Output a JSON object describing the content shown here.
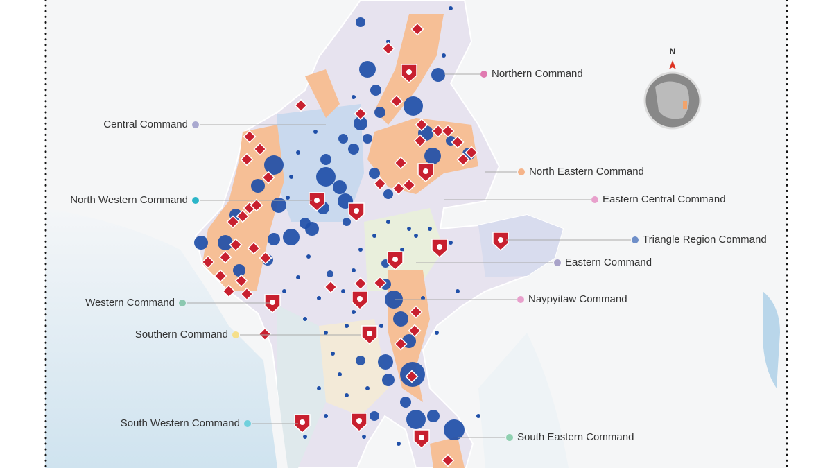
{
  "commands": [
    {
      "label": "Northern Command"
    },
    {
      "label": "Central Command"
    },
    {
      "label": "North Eastern Command"
    },
    {
      "label": "North Western Command"
    },
    {
      "label": "Eastern Central Command"
    },
    {
      "label": "Triangle Region Command"
    },
    {
      "label": "Eastern Command"
    },
    {
      "label": "Western Command"
    },
    {
      "label": "Naypyitaw Command"
    },
    {
      "label": "Southern Command"
    },
    {
      "label": "South Western Command"
    },
    {
      "label": "South Eastern Command"
    }
  ],
  "compass": {
    "label": "N"
  }
}
